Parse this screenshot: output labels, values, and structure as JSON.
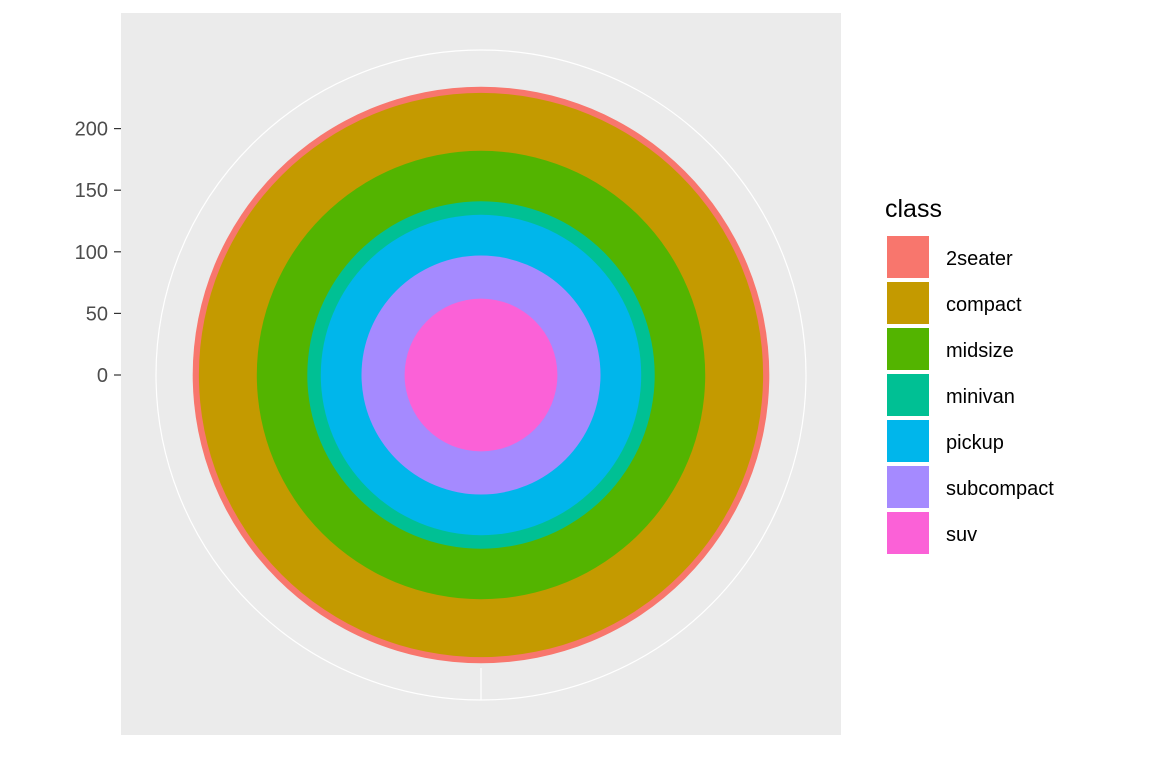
{
  "chart_data": {
    "type": "bar",
    "subtype": "stacked-bar-in-polar-coordinates (bullseye)",
    "categories": [
      "2seater",
      "compact",
      "midsize",
      "minivan",
      "pickup",
      "subcompact",
      "suv"
    ],
    "values": [
      5,
      47,
      41,
      11,
      33,
      35,
      62
    ],
    "stack_order_outer_to_inner": [
      "2seater",
      "compact",
      "midsize",
      "minivan",
      "pickup",
      "subcompact",
      "suv"
    ],
    "ylabel": "",
    "xlabel": "",
    "ylim": [
      0,
      234
    ],
    "y_ticks": [
      0,
      50,
      100,
      150,
      200
    ],
    "y_tick_labels": [
      "0",
      "50",
      "100",
      "150",
      "200"
    ],
    "grid": true,
    "panel_background": "#EBEBEB",
    "grid_color": "#FFFFFF",
    "legend": {
      "title": "class",
      "position": "right",
      "entries": [
        {
          "label": "2seater",
          "color": "#F8766D"
        },
        {
          "label": "compact",
          "color": "#C49A00"
        },
        {
          "label": "midsize",
          "color": "#53B400"
        },
        {
          "label": "minivan",
          "color": "#00C094"
        },
        {
          "label": "pickup",
          "color": "#00B6EB"
        },
        {
          "label": "subcompact",
          "color": "#A58AFF"
        },
        {
          "label": "suv",
          "color": "#FB61D7"
        }
      ]
    }
  }
}
